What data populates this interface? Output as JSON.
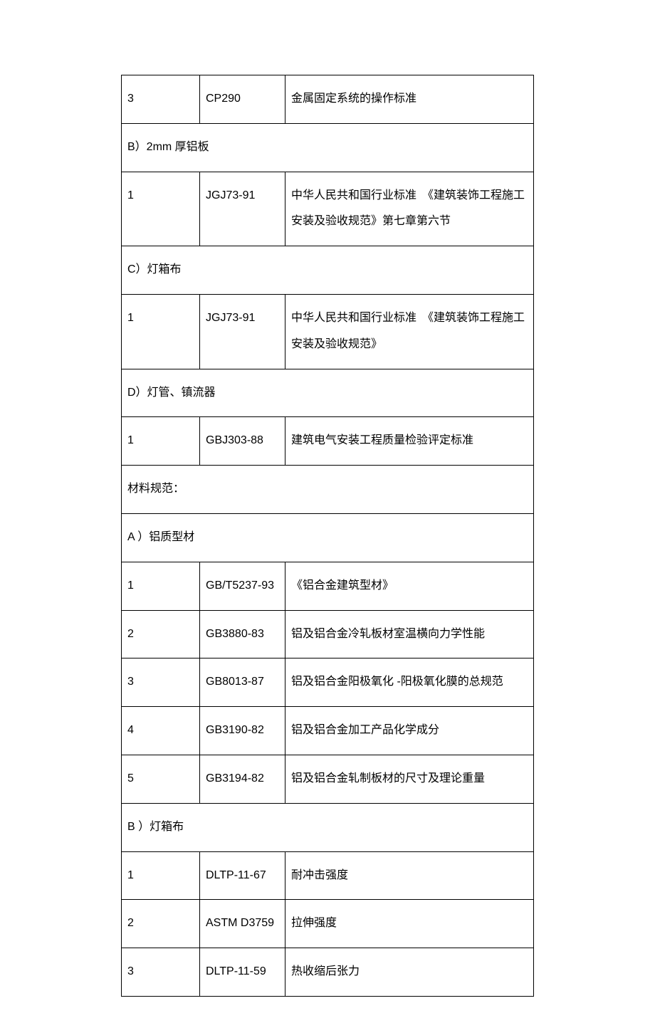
{
  "table": {
    "border_color": "#000000",
    "background_color": "#ffffff",
    "text_color": "#000000",
    "font_size": 16,
    "columns": [
      {
        "width": 110,
        "align": "left"
      },
      {
        "width": 120,
        "align": "left"
      },
      {
        "width": "auto",
        "align": "left"
      }
    ],
    "rows": [
      {
        "type": "data",
        "cells": [
          "3",
          "CP290",
          "金属固定系统的操作标准"
        ]
      },
      {
        "type": "header",
        "text": "B）2mm 厚铝板"
      },
      {
        "type": "data",
        "cells": [
          "1",
          "JGJ73-91",
          "中华人民共和国行业标准　《建筑装饰工程施工安装及验收规范》第七章第六节"
        ]
      },
      {
        "type": "header",
        "text": "C）灯箱布"
      },
      {
        "type": "data",
        "cells": [
          "1",
          "JGJ73-91",
          "中华人民共和国行业标准　《建筑装饰工程施工安装及验收规范》"
        ]
      },
      {
        "type": "header",
        "text": "D）灯管、镇流器"
      },
      {
        "type": "data",
        "cells": [
          "1",
          "GBJ303-88",
          "建筑电气安装工程质量检验评定标准"
        ]
      },
      {
        "type": "header",
        "text": "材料规范："
      },
      {
        "type": "header",
        "text": "A ）铝质型材"
      },
      {
        "type": "data",
        "cells": [
          "1",
          "GB/T5237-93",
          "《铝合金建筑型材》"
        ]
      },
      {
        "type": "data",
        "cells": [
          "2",
          "GB3880-83",
          "铝及铝合金冷轧板材室温横向力学性能"
        ]
      },
      {
        "type": "data",
        "cells": [
          "3",
          "GB8013-87",
          "铝及铝合金阳极氧化  -阳极氧化膜的总规范"
        ]
      },
      {
        "type": "data",
        "cells": [
          "4",
          "GB3190-82",
          "铝及铝合金加工产品化学成分"
        ]
      },
      {
        "type": "data",
        "cells": [
          "5",
          "GB3194-82",
          "铝及铝合金轧制板材的尺寸及理论重量"
        ]
      },
      {
        "type": "header",
        "text": "B ）灯箱布"
      },
      {
        "type": "data",
        "cells": [
          "1",
          "DLTP-11-67",
          "耐冲击强度"
        ]
      },
      {
        "type": "data",
        "cells": [
          "2",
          "ASTM D3759",
          "拉伸强度"
        ]
      },
      {
        "type": "data",
        "cells": [
          "3",
          "DLTP-11-59",
          "热收缩后张力"
        ]
      }
    ]
  }
}
